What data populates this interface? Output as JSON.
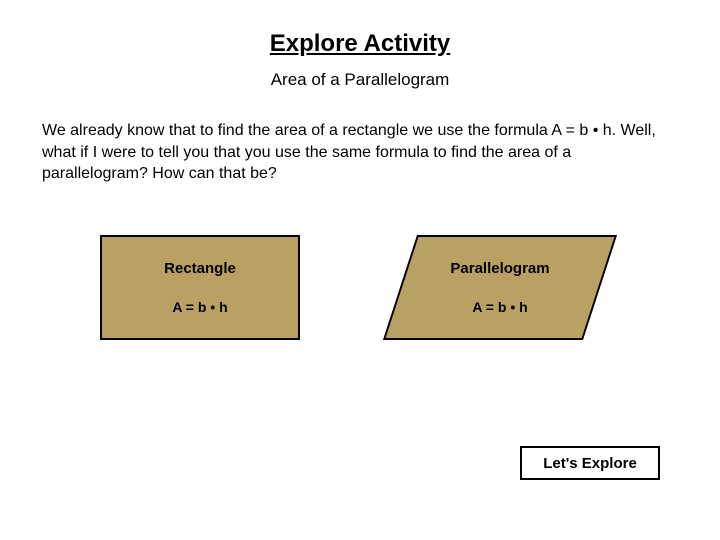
{
  "title": "Explore Activity",
  "subtitle": "Area of a Parallelogram",
  "body_text": "We already know that to find the area of a rectangle we use the formula A = b • h.  Well, what if I were to tell you that you use the same formula to find the area of a parallelogram?  How can that be?",
  "shapes": {
    "rectangle": {
      "label": "Rectangle",
      "formula": "A = b • h",
      "fill_color": "#b8a163",
      "border_color": "#000000"
    },
    "parallelogram": {
      "label": "Parallelogram",
      "formula": "A = b • h",
      "fill_color": "#b8a163",
      "border_color": "#000000",
      "skew_deg": -18
    }
  },
  "button_label": "Let's Explore",
  "colors": {
    "background": "#ffffff",
    "text": "#000000",
    "shape_fill": "#b8a163"
  },
  "typography": {
    "title_fontsize": 24,
    "subtitle_fontsize": 17,
    "body_fontsize": 16,
    "label_fontsize": 15,
    "formula_fontsize": 14
  }
}
